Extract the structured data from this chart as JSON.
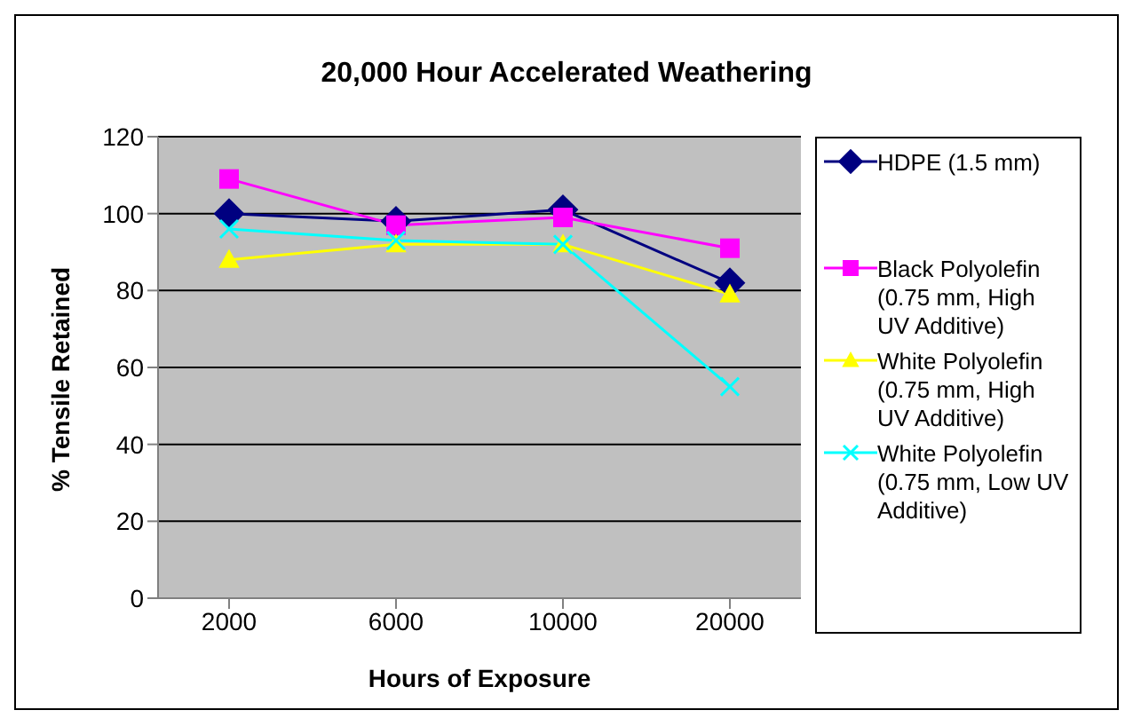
{
  "chart_data": {
    "type": "line",
    "title": "20,000 Hour Accelerated Weathering",
    "xlabel": "Hours of Exposure",
    "ylabel": "% Tensile Retained",
    "categories": [
      "2000",
      "6000",
      "10000",
      "20000"
    ],
    "series": [
      {
        "name": "HDPE (1.5 mm)",
        "color": "#000080",
        "marker": "diamond",
        "values": [
          100,
          98,
          101,
          82
        ]
      },
      {
        "name": "Black Polyolefin (0.75 mm, High UV Additive)",
        "color": "#ff00ff",
        "marker": "square",
        "values": [
          109,
          97,
          99,
          91
        ]
      },
      {
        "name": "White Polyolefin (0.75 mm, High UV Additive)",
        "color": "#ffff00",
        "marker": "triangle",
        "values": [
          88,
          92,
          92,
          79
        ]
      },
      {
        "name": "White Polyolefin (0.75 mm, Low UV Additive)",
        "color": "#00ffff",
        "marker": "cross",
        "values": [
          96,
          93,
          92,
          55
        ]
      }
    ],
    "ylim": [
      0,
      120
    ],
    "yticks": [
      0,
      20,
      40,
      60,
      80,
      100,
      120
    ],
    "grid": "y",
    "legend": "right"
  }
}
